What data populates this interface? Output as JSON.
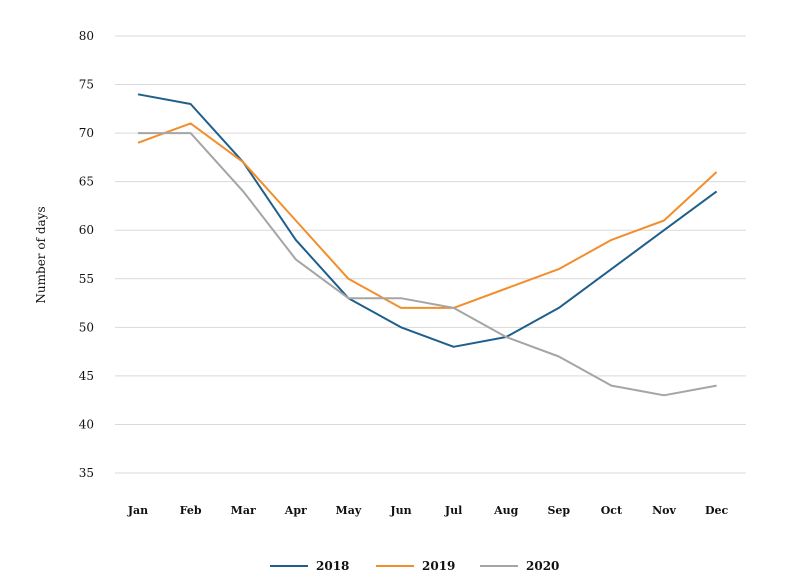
{
  "chart_data": {
    "type": "line",
    "title": "",
    "xlabel": "",
    "ylabel": "Number of days",
    "categories": [
      "Jan",
      "Feb",
      "Mar",
      "Apr",
      "May",
      "Jun",
      "Jul",
      "Aug",
      "Sep",
      "Oct",
      "Nov",
      "Dec"
    ],
    "ylim": [
      35,
      80
    ],
    "yticks": [
      35,
      40,
      45,
      50,
      55,
      60,
      65,
      70,
      75,
      80
    ],
    "grid": true,
    "legend_position": "bottom",
    "series": [
      {
        "name": "2018",
        "color": "#1f5f8b",
        "values": [
          74,
          73,
          67,
          59,
          53,
          50,
          48,
          49,
          52,
          56,
          60,
          64
        ]
      },
      {
        "name": "2019",
        "color": "#f28e2b",
        "values": [
          69,
          71,
          67,
          61,
          55,
          52,
          52,
          54,
          56,
          59,
          61,
          66
        ]
      },
      {
        "name": "2020",
        "color": "#a5a5a5",
        "values": [
          70,
          70,
          64,
          57,
          53,
          53,
          52,
          49,
          47,
          44,
          43,
          44
        ]
      }
    ]
  }
}
